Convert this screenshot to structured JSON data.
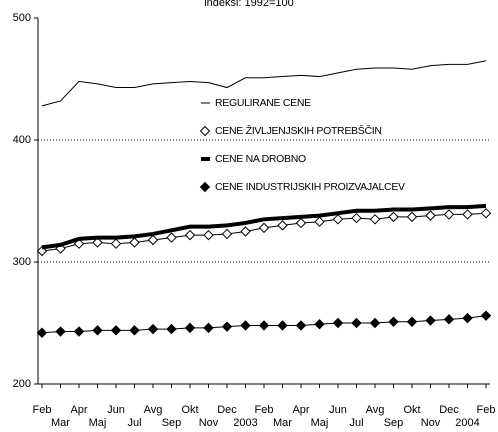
{
  "chart_data": {
    "type": "line",
    "subtitle": "indeksi: 1992=100",
    "categories": [
      "Feb",
      "Mar",
      "Apr",
      "Maj",
      "Jun",
      "Jul",
      "Avg",
      "Sep",
      "Okt",
      "Nov",
      "Dec",
      "2003",
      "Feb",
      "Mar",
      "Apr",
      "Maj",
      "Jun",
      "Jul",
      "Avg",
      "Sep",
      "Okt",
      "Nov",
      "Dec",
      "2004",
      "Feb"
    ],
    "series": [
      {
        "name": "REGULIRANE CENE",
        "color": "#000000",
        "marker": "none",
        "line_width": 1,
        "values": [
          428,
          432,
          448,
          446,
          443,
          443,
          446,
          447,
          448,
          447,
          443,
          451,
          451,
          452,
          453,
          452,
          455,
          458,
          459,
          459,
          458,
          461,
          462,
          462,
          465
        ]
      },
      {
        "name": "CENE ŽIVLJENJSKIH POTREBŠČIN",
        "color": "#000000",
        "marker": "open-diamond",
        "line_width": 1,
        "values": [
          309,
          311,
          315,
          316,
          315,
          316,
          318,
          320,
          322,
          322,
          323,
          325,
          328,
          330,
          332,
          333,
          335,
          336,
          335,
          337,
          337,
          338,
          339,
          339,
          340
        ]
      },
      {
        "name": "CENE NA DROBNO",
        "color": "#000000",
        "marker": "none",
        "line_width": 4,
        "values": [
          312,
          314,
          319,
          320,
          320,
          321,
          323,
          326,
          329,
          329,
          330,
          332,
          335,
          336,
          337,
          338,
          340,
          342,
          342,
          343,
          343,
          344,
          345,
          345,
          346
        ]
      },
      {
        "name": "CENE INDUSTRIJSKIH PROIZVAJALCEV",
        "color": "#000000",
        "marker": "filled-diamond",
        "line_width": 1,
        "values": [
          242,
          243,
          243,
          244,
          244,
          244,
          245,
          245,
          246,
          246,
          247,
          248,
          248,
          248,
          248,
          249,
          250,
          250,
          250,
          251,
          251,
          252,
          253,
          254,
          256
        ]
      }
    ],
    "ylim": [
      200,
      500
    ],
    "yticks": [
      200,
      300,
      400,
      500
    ],
    "grid": true
  }
}
